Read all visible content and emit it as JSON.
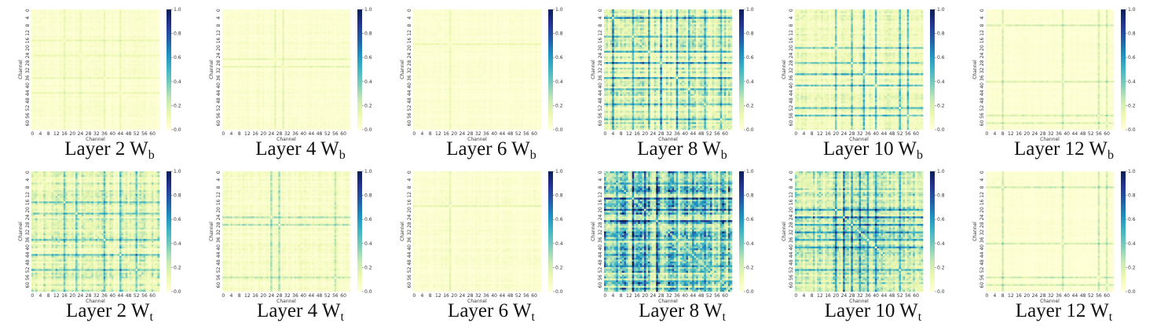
{
  "figure": {
    "colormap": "YlGnBu",
    "colors": {
      "low": "#ffffd9",
      "mid": "#41b6c4",
      "high": "#081d58"
    }
  },
  "chart_data": [
    {
      "type": "heatmap",
      "caption": {
        "prefix": "Layer 2 W",
        "sub": "b"
      },
      "xlabel": "Channel",
      "ylabel": "Channel",
      "x_ticks": [
        "0",
        "4",
        "8",
        "12",
        "16",
        "20",
        "24",
        "28",
        "32",
        "36",
        "40",
        "44",
        "48",
        "52",
        "56",
        "60"
      ],
      "y_ticks": [
        "0",
        "4",
        "8",
        "12",
        "16",
        "20",
        "24",
        "28",
        "32",
        "36",
        "40",
        "44",
        "48",
        "52",
        "56",
        "60"
      ],
      "colorbar": {
        "range": [
          0,
          1
        ],
        "ticks": [
          "0.0",
          "0.2",
          "0.4",
          "0.6",
          "0.8",
          "1.0"
        ]
      },
      "size": 64,
      "mean_intensity": 0.06,
      "highlight_channels": [
        16,
        24,
        36,
        44
      ],
      "highlight_strength": 0.1
    },
    {
      "type": "heatmap",
      "caption": {
        "prefix": "Layer 4 W",
        "sub": "b"
      },
      "xlabel": "Channel",
      "ylabel": "Channel",
      "x_ticks": [
        "0",
        "4",
        "8",
        "12",
        "16",
        "20",
        "24",
        "28",
        "32",
        "36",
        "40",
        "44",
        "48",
        "52",
        "56",
        "60"
      ],
      "y_ticks": [
        "0",
        "4",
        "8",
        "12",
        "16",
        "20",
        "24",
        "28",
        "32",
        "36",
        "40",
        "44",
        "48",
        "52",
        "56",
        "60"
      ],
      "colorbar": {
        "range": [
          0,
          1
        ],
        "ticks": [
          "0.0",
          "0.2",
          "0.4",
          "0.6",
          "0.8",
          "1.0"
        ]
      },
      "size": 64,
      "mean_intensity": 0.05,
      "highlight_channels": [
        26,
        30
      ],
      "highlight_strength": 0.12
    },
    {
      "type": "heatmap",
      "caption": {
        "prefix": "Layer 6 W",
        "sub": "b"
      },
      "xlabel": "Channel",
      "ylabel": "Channel",
      "x_ticks": [
        "0",
        "4",
        "8",
        "12",
        "16",
        "20",
        "24",
        "28",
        "32",
        "36",
        "40",
        "44",
        "48",
        "52",
        "56",
        "60"
      ],
      "y_ticks": [
        "0",
        "4",
        "8",
        "12",
        "16",
        "20",
        "24",
        "28",
        "32",
        "36",
        "40",
        "44",
        "48",
        "52",
        "56",
        "60"
      ],
      "colorbar": {
        "range": [
          0,
          1
        ],
        "ticks": [
          "0.0",
          "0.2",
          "0.4",
          "0.6",
          "0.8",
          "1.0"
        ]
      },
      "size": 64,
      "mean_intensity": 0.04,
      "highlight_channels": [
        18
      ],
      "highlight_strength": 0.1
    },
    {
      "type": "heatmap",
      "caption": {
        "prefix": "Layer 8 W",
        "sub": "b"
      },
      "xlabel": "Channel",
      "ylabel": "Channel",
      "x_ticks": [
        "0",
        "4",
        "8",
        "12",
        "16",
        "20",
        "24",
        "28",
        "32",
        "36",
        "40",
        "44",
        "48",
        "52",
        "56",
        "60"
      ],
      "y_ticks": [
        "0",
        "4",
        "8",
        "12",
        "16",
        "20",
        "24",
        "28",
        "32",
        "36",
        "40",
        "44",
        "48",
        "52",
        "56",
        "60"
      ],
      "colorbar": {
        "range": [
          0,
          1
        ],
        "ticks": [
          "0.0",
          "0.2",
          "0.4",
          "0.6",
          "0.8",
          "1.0"
        ]
      },
      "size": 64,
      "mean_intensity": 0.25,
      "highlight_channels": [
        4,
        14,
        22,
        28,
        36,
        42,
        50,
        58
      ],
      "highlight_strength": 0.35
    },
    {
      "type": "heatmap",
      "caption": {
        "prefix": "Layer 10 W",
        "sub": "b"
      },
      "xlabel": "Channel",
      "ylabel": "Channel",
      "x_ticks": [
        "0",
        "4",
        "8",
        "12",
        "16",
        "20",
        "24",
        "28",
        "32",
        "36",
        "40",
        "44",
        "48",
        "52",
        "56",
        "60"
      ],
      "y_ticks": [
        "0",
        "4",
        "8",
        "12",
        "16",
        "20",
        "24",
        "28",
        "32",
        "36",
        "40",
        "44",
        "48",
        "52",
        "56",
        "60"
      ],
      "colorbar": {
        "range": [
          0,
          1
        ],
        "ticks": [
          "0.0",
          "0.2",
          "0.4",
          "0.6",
          "0.8",
          "1.0"
        ]
      },
      "size": 64,
      "mean_intensity": 0.15,
      "highlight_channels": [
        20,
        28,
        34,
        40,
        52,
        56
      ],
      "highlight_strength": 0.35
    },
    {
      "type": "heatmap",
      "caption": {
        "prefix": "Layer 12 W",
        "sub": "b"
      },
      "xlabel": "Channel",
      "ylabel": "Channel",
      "x_ticks": [
        "0",
        "4",
        "8",
        "12",
        "16",
        "20",
        "24",
        "28",
        "32",
        "36",
        "40",
        "44",
        "48",
        "52",
        "56",
        "60"
      ],
      "y_ticks": [
        "0",
        "4",
        "8",
        "12",
        "16",
        "20",
        "24",
        "28",
        "32",
        "36",
        "40",
        "44",
        "48",
        "52",
        "56",
        "60"
      ],
      "colorbar": {
        "range": [
          0,
          1
        ],
        "ticks": [
          "0.0",
          "0.2",
          "0.4",
          "0.6",
          "0.8",
          "1.0"
        ]
      },
      "size": 64,
      "mean_intensity": 0.03,
      "highlight_channels": [
        8,
        38,
        56,
        60
      ],
      "highlight_strength": 0.18
    },
    {
      "type": "heatmap",
      "caption": {
        "prefix": "Layer 2 W",
        "sub": "t"
      },
      "xlabel": "Channel",
      "ylabel": "Channel",
      "x_ticks": [
        "0",
        "4",
        "8",
        "12",
        "16",
        "20",
        "24",
        "28",
        "32",
        "36",
        "40",
        "44",
        "48",
        "52",
        "56",
        "60"
      ],
      "y_ticks": [
        "0",
        "4",
        "8",
        "12",
        "16",
        "20",
        "24",
        "28",
        "32",
        "36",
        "40",
        "44",
        "48",
        "52",
        "56",
        "60"
      ],
      "colorbar": {
        "range": [
          0,
          1
        ],
        "ticks": [
          "0.0",
          "0.2",
          "0.4",
          "0.6",
          "0.8",
          "1.0"
        ]
      },
      "size": 64,
      "mean_intensity": 0.22,
      "highlight_channels": [
        16,
        22,
        36,
        44,
        52
      ],
      "highlight_strength": 0.3
    },
    {
      "type": "heatmap",
      "caption": {
        "prefix": "Layer 4 W",
        "sub": "t"
      },
      "xlabel": "Channel",
      "ylabel": "Channel",
      "x_ticks": [
        "0",
        "4",
        "8",
        "12",
        "16",
        "20",
        "24",
        "28",
        "32",
        "36",
        "40",
        "44",
        "48",
        "52",
        "56",
        "60"
      ],
      "y_ticks": [
        "0",
        "4",
        "8",
        "12",
        "16",
        "20",
        "24",
        "28",
        "32",
        "36",
        "40",
        "44",
        "48",
        "52",
        "56",
        "60"
      ],
      "colorbar": {
        "range": [
          0,
          1
        ],
        "ticks": [
          "0.0",
          "0.2",
          "0.4",
          "0.6",
          "0.8",
          "1.0"
        ]
      },
      "size": 64,
      "mean_intensity": 0.08,
      "highlight_channels": [
        24,
        28,
        56
      ],
      "highlight_strength": 0.22
    },
    {
      "type": "heatmap",
      "caption": {
        "prefix": "Layer 6 W",
        "sub": "t"
      },
      "xlabel": "Channel",
      "ylabel": "Channel",
      "x_ticks": [
        "0",
        "4",
        "8",
        "12",
        "16",
        "20",
        "24",
        "28",
        "32",
        "36",
        "40",
        "44",
        "48",
        "52",
        "56",
        "60"
      ],
      "y_ticks": [
        "0",
        "4",
        "8",
        "12",
        "16",
        "20",
        "24",
        "28",
        "32",
        "36",
        "40",
        "44",
        "48",
        "52",
        "56",
        "60"
      ],
      "colorbar": {
        "range": [
          0,
          1
        ],
        "ticks": [
          "0.0",
          "0.2",
          "0.4",
          "0.6",
          "0.8",
          "1.0"
        ]
      },
      "size": 64,
      "mean_intensity": 0.05,
      "highlight_channels": [
        18
      ],
      "highlight_strength": 0.12
    },
    {
      "type": "heatmap",
      "caption": {
        "prefix": "Layer 8 W",
        "sub": "t"
      },
      "xlabel": "Channel",
      "ylabel": "Channel",
      "x_ticks": [
        "0",
        "4",
        "8",
        "12",
        "16",
        "20",
        "24",
        "28",
        "32",
        "36",
        "40",
        "44",
        "48",
        "52",
        "56",
        "60"
      ],
      "y_ticks": [
        "0",
        "4",
        "8",
        "12",
        "16",
        "20",
        "24",
        "28",
        "32",
        "36",
        "40",
        "44",
        "48",
        "52",
        "56",
        "60"
      ],
      "colorbar": {
        "range": [
          0,
          1
        ],
        "ticks": [
          "0.0",
          "0.2",
          "0.4",
          "0.6",
          "0.8",
          "1.0"
        ]
      },
      "size": 64,
      "mean_intensity": 0.5,
      "highlight_channels": [
        6,
        14,
        20,
        26,
        36,
        44,
        50,
        58
      ],
      "highlight_strength": 0.35
    },
    {
      "type": "heatmap",
      "caption": {
        "prefix": "Layer 10 W",
        "sub": "t"
      },
      "xlabel": "Channel",
      "ylabel": "Channel",
      "x_ticks": [
        "0",
        "4",
        "8",
        "12",
        "16",
        "20",
        "24",
        "28",
        "32",
        "36",
        "40",
        "44",
        "48",
        "52",
        "56",
        "60"
      ],
      "y_ticks": [
        "0",
        "4",
        "8",
        "12",
        "16",
        "20",
        "24",
        "28",
        "32",
        "36",
        "40",
        "44",
        "48",
        "52",
        "56",
        "60"
      ],
      "colorbar": {
        "range": [
          0,
          1
        ],
        "ticks": [
          "0.0",
          "0.2",
          "0.4",
          "0.6",
          "0.8",
          "1.0"
        ]
      },
      "size": 64,
      "mean_intensity": 0.3,
      "highlight_channels": [
        20,
        24,
        28,
        32,
        36,
        40,
        52
      ],
      "highlight_strength": 0.4
    },
    {
      "type": "heatmap",
      "caption": {
        "prefix": "Layer 12 W",
        "sub": "t"
      },
      "xlabel": "Channel",
      "ylabel": "Channel",
      "x_ticks": [
        "0",
        "4",
        "8",
        "12",
        "16",
        "20",
        "24",
        "28",
        "32",
        "36",
        "40",
        "44",
        "48",
        "52",
        "56",
        "60"
      ],
      "y_ticks": [
        "0",
        "4",
        "8",
        "12",
        "16",
        "20",
        "24",
        "28",
        "32",
        "36",
        "40",
        "44",
        "48",
        "52",
        "56",
        "60"
      ],
      "colorbar": {
        "range": [
          0,
          1
        ],
        "ticks": [
          "0.0",
          "0.2",
          "0.4",
          "0.6",
          "0.8",
          "1.0"
        ]
      },
      "size": 64,
      "mean_intensity": 0.03,
      "highlight_channels": [
        8,
        38,
        56,
        60
      ],
      "highlight_strength": 0.2
    }
  ]
}
